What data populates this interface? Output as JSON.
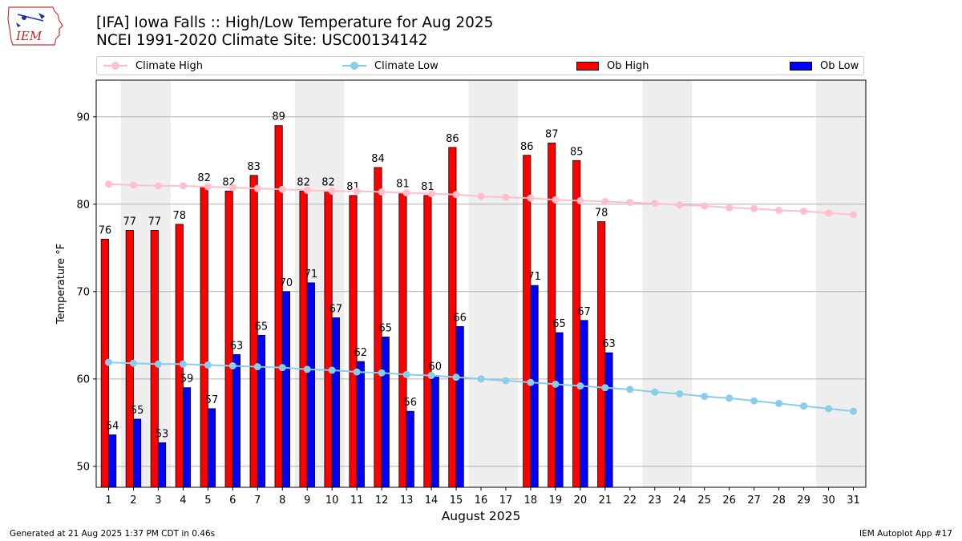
{
  "header": {
    "title_line1": "[IFA] Iowa Falls :: High/Low Temperature for Aug 2025",
    "title_line2": "NCEI 1991-2020 Climate Site: USC00134142"
  },
  "logo": {
    "text": "IEM",
    "color": "#cc2222"
  },
  "footer": {
    "generated": "Generated at 21 Aug 2025 1:37 PM CDT in 0.46s",
    "app": "IEM Autoplot App #17"
  },
  "colors": {
    "climate_high": "#ffc0cb",
    "climate_low": "#87ceeb",
    "ob_high": "#ff0000",
    "ob_low": "#0000ff",
    "weekend_shade": "#eeeeee",
    "grid": "#b0b0b0"
  },
  "chart_data": {
    "type": "bar",
    "xlabel": "August 2025",
    "ylabel": "Temperature °F",
    "ylim": [
      47.6,
      94.2
    ],
    "yticks": [
      50,
      60,
      70,
      80,
      90
    ],
    "categories": [
      "1",
      "2",
      "3",
      "4",
      "5",
      "6",
      "7",
      "8",
      "9",
      "10",
      "11",
      "12",
      "13",
      "14",
      "15",
      "16",
      "17",
      "18",
      "19",
      "20",
      "21",
      "22",
      "23",
      "24",
      "25",
      "26",
      "27",
      "28",
      "29",
      "30",
      "31"
    ],
    "shaded_days": [
      [
        2,
        3
      ],
      [
        9,
        10
      ],
      [
        16,
        17
      ],
      [
        23,
        24
      ],
      [
        30,
        31
      ]
    ],
    "grid": true,
    "legend_position": "top",
    "series": [
      {
        "name": "Climate High",
        "kind": "line",
        "values": [
          82.3,
          82.2,
          82.1,
          82.1,
          82.0,
          81.9,
          81.8,
          81.7,
          81.6,
          81.5,
          81.5,
          81.4,
          81.3,
          81.2,
          81.1,
          80.9,
          80.8,
          80.7,
          80.5,
          80.4,
          80.3,
          80.2,
          80.1,
          79.9,
          79.8,
          79.6,
          79.5,
          79.3,
          79.2,
          79.0,
          78.8
        ]
      },
      {
        "name": "Climate Low",
        "kind": "line",
        "values": [
          61.9,
          61.8,
          61.7,
          61.7,
          61.6,
          61.5,
          61.4,
          61.3,
          61.1,
          61.0,
          60.8,
          60.7,
          60.5,
          60.4,
          60.2,
          60.0,
          59.8,
          59.6,
          59.4,
          59.2,
          59.0,
          58.8,
          58.5,
          58.3,
          58.0,
          57.8,
          57.5,
          57.2,
          56.9,
          56.6,
          56.3
        ]
      },
      {
        "name": "Ob High",
        "kind": "bar",
        "values": [
          76,
          77,
          77,
          77.7,
          82,
          81.5,
          83.3,
          89,
          81.5,
          81.5,
          81,
          84.2,
          81.3,
          81,
          86.5,
          null,
          null,
          85.6,
          87,
          85,
          78,
          null,
          null,
          null,
          null,
          null,
          null,
          null,
          null,
          null,
          null
        ],
        "labels": [
          "76",
          "77",
          "77",
          "78",
          "82",
          "82",
          "83",
          "89",
          "82",
          "82",
          "81",
          "84",
          "81",
          "81",
          "86",
          "",
          "",
          "86",
          "87",
          "85",
          "78",
          "",
          "",
          "",
          "",
          "",
          "",
          "",
          "",
          "",
          ""
        ]
      },
      {
        "name": "Ob Low",
        "kind": "bar",
        "values": [
          53.6,
          55.4,
          52.7,
          59,
          56.6,
          62.8,
          65,
          70,
          71,
          67,
          62,
          64.8,
          56.3,
          60.4,
          66,
          null,
          null,
          70.7,
          65.3,
          66.7,
          63,
          null,
          null,
          null,
          null,
          null,
          null,
          null,
          null,
          null,
          null
        ],
        "labels": [
          "54",
          "55",
          "53",
          "59",
          "57",
          "63",
          "65",
          "70",
          "71",
          "67",
          "62",
          "65",
          "56",
          "60",
          "66",
          "",
          "",
          "71",
          "65",
          "67",
          "63",
          "",
          "",
          "",
          "",
          "",
          "",
          "",
          "",
          "",
          ""
        ]
      }
    ]
  }
}
